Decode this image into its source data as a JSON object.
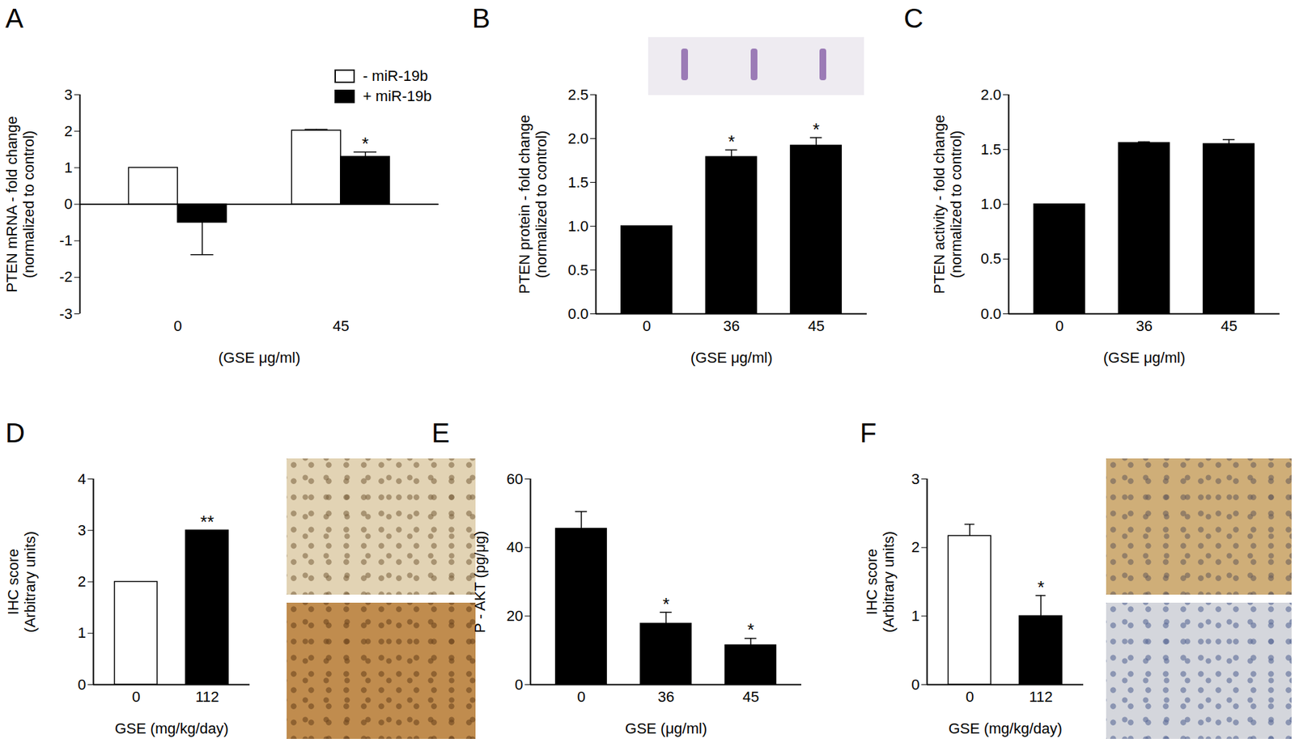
{
  "chart_data": [
    {
      "title": "A",
      "type": "bar",
      "ylabel": "PTEN mRNA - fold change\n(normalized to control)",
      "xlabel": "(GSE μg/ml)",
      "categories": [
        "0",
        "45"
      ],
      "series": [
        {
          "name": "- miR-19b",
          "color": "#ffffff",
          "values": [
            1,
            2.02
          ],
          "errors": [
            0,
            0.03
          ],
          "significance": [
            null,
            null
          ]
        },
        {
          "name": "+ miR-19b",
          "color": "#000000",
          "values": [
            -0.5,
            1.3
          ],
          "errors": [
            0.88,
            0.13
          ],
          "significance": [
            null,
            "*"
          ]
        }
      ],
      "ylim": [
        -3,
        3
      ],
      "yticks": [
        -3,
        -2,
        -1,
        0,
        1,
        2,
        3
      ],
      "legend": "upper right"
    },
    {
      "title": "B",
      "type": "bar",
      "ylabel": "PTEN protein - fold change\n(normalized to control)",
      "xlabel": "(GSE μg/ml)",
      "categories": [
        "0",
        "36",
        "45"
      ],
      "values": [
        1,
        1.79,
        1.92
      ],
      "errors": [
        0,
        0.08,
        0.09
      ],
      "significance": [
        null,
        "*",
        "*"
      ],
      "color": "#000000",
      "ylim": [
        0,
        2.5
      ],
      "yticks": [
        {
          "value": 0,
          "label": "0.0"
        },
        0.5,
        {
          "value": 1,
          "label": "1.0"
        },
        1.5,
        {
          "value": 2,
          "label": "2.0"
        },
        2.5
      ]
    },
    {
      "title": "C",
      "type": "bar",
      "ylabel": "PTEN activity - fold change\n(normalized to control)",
      "xlabel": "(GSE μg/ml)",
      "categories": [
        "0",
        "36",
        "45"
      ],
      "values": [
        1,
        1.56,
        1.55
      ],
      "errors": [
        0,
        0.01,
        0.04
      ],
      "significance": [
        null,
        null,
        null
      ],
      "color": "#000000",
      "ylim": [
        0,
        2
      ],
      "yticks": [
        {
          "value": 0,
          "label": "0.0"
        },
        0.5,
        {
          "value": 1,
          "label": "1.0"
        },
        1.5,
        {
          "value": 2,
          "label": "2.0"
        }
      ]
    },
    {
      "title": "D",
      "type": "bar",
      "ylabel": "IHC score\n(Arbitrary units)",
      "xlabel": "GSE (mg/kg/day)",
      "categories": [
        "0",
        "112"
      ],
      "values": [
        2,
        3
      ],
      "errors": [
        0,
        0
      ],
      "significance": [
        null,
        "**"
      ],
      "colors": [
        "#ffffff",
        "#000000"
      ],
      "ylim": [
        0,
        4
      ],
      "yticks": [
        0,
        1,
        2,
        3,
        4
      ]
    },
    {
      "title": "E",
      "type": "bar",
      "ylabel": "P - AKT (pg/μg)",
      "xlabel": "GSE (μg/ml)",
      "categories": [
        "0",
        "36",
        "45"
      ],
      "values": [
        45.5,
        17.8,
        11.5
      ],
      "errors": [
        5,
        3.3,
        2
      ],
      "significance": [
        null,
        "*",
        "*"
      ],
      "color": "#000000",
      "ylim": [
        0,
        60
      ],
      "yticks": [
        0,
        20,
        40,
        60
      ]
    },
    {
      "title": "F",
      "type": "bar",
      "ylabel": "IHC score\n(Arbitrary units)",
      "xlabel": "GSE (mg/kg/day)",
      "categories": [
        "0",
        "112"
      ],
      "values": [
        2.17,
        1
      ],
      "errors": [
        0.17,
        0.3
      ],
      "significance": [
        null,
        "*"
      ],
      "colors": [
        "#ffffff",
        "#000000"
      ],
      "ylim": [
        0,
        3
      ],
      "yticks": [
        0,
        1,
        2,
        3
      ]
    }
  ]
}
